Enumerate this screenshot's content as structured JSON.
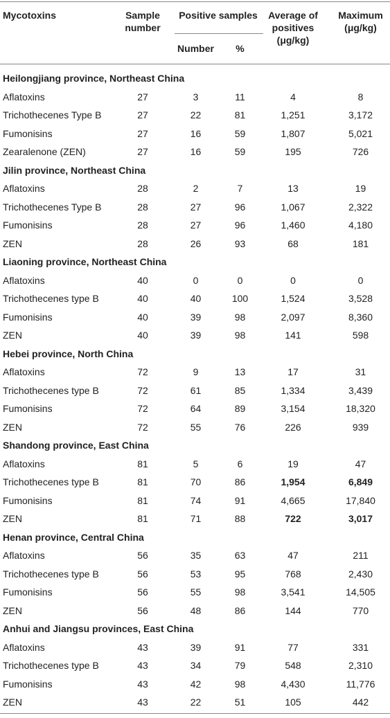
{
  "header": {
    "mycotoxins": "Mycotoxins",
    "sample_number": "Sample number",
    "positive_samples": "Positive samples",
    "number": "Number",
    "percent": "%",
    "average": "Average of positives (μg/kg)",
    "maximum": "Maximum (μg/kg)"
  },
  "sections": [
    {
      "title": "Heilongjiang province, Northeast China",
      "rows": [
        [
          "Aflatoxins",
          "27",
          "3",
          "11",
          "4",
          "8"
        ],
        [
          "Trichothecenes Type B",
          "27",
          "22",
          "81",
          "1,251",
          "3,172"
        ],
        [
          "Fumonisins",
          "27",
          "16",
          "59",
          "1,807",
          "5,021"
        ],
        [
          "Zearalenone (ZEN)",
          "27",
          "16",
          "59",
          "195",
          "726"
        ]
      ]
    },
    {
      "title": "Jilin province, Northeast China",
      "rows": [
        [
          "Aflatoxins",
          "28",
          "2",
          "7",
          "13",
          "19"
        ],
        [
          "Trichothecenes Type B",
          "28",
          "27",
          "96",
          "1,067",
          "2,322"
        ],
        [
          "Fumonisins",
          "28",
          "27",
          "96",
          "1,460",
          "4,180"
        ],
        [
          "ZEN",
          "28",
          "26",
          "93",
          "68",
          "181"
        ]
      ]
    },
    {
      "title": "Liaoning province, Northeast China",
      "rows": [
        [
          "Aflatoxins",
          "40",
          "0",
          "0",
          "0",
          "0"
        ],
        [
          "Trichothecenes type B",
          "40",
          "40",
          "100",
          "1,524",
          "3,528"
        ],
        [
          "Fumonisins",
          "40",
          "39",
          "98",
          "2,097",
          "8,360"
        ],
        [
          "ZEN",
          "40",
          "39",
          "98",
          "141",
          "598"
        ]
      ]
    },
    {
      "title": "Hebei province, North China",
      "rows": [
        [
          "Aflatoxins",
          "72",
          "9",
          "13",
          "17",
          "31"
        ],
        [
          "Trichothecenes type B",
          "72",
          "61",
          "85",
          "1,334",
          "3,439"
        ],
        [
          "Fumonisins",
          "72",
          "64",
          "89",
          "3,154",
          "18,320"
        ],
        [
          "ZEN",
          "72",
          "55",
          "76",
          "226",
          "939"
        ]
      ]
    },
    {
      "title": "Shandong province, East China",
      "rows": [
        [
          "Aflatoxins",
          "81",
          "5",
          "6",
          "19",
          "47"
        ],
        [
          "Trichothecenes type B",
          "81",
          "70",
          "86",
          "1,954",
          "6,849"
        ],
        [
          "Fumonisins",
          "81",
          "74",
          "91",
          "4,665",
          "17,840"
        ],
        [
          "ZEN",
          "81",
          "71",
          "88",
          "722",
          "3,017"
        ]
      ],
      "bold_cells": [
        [
          1,
          4
        ],
        [
          1,
          5
        ],
        [
          3,
          4
        ],
        [
          3,
          5
        ]
      ]
    },
    {
      "title": "Henan province, Central China",
      "rows": [
        [
          "Aflatoxins",
          "56",
          "35",
          "63",
          "47",
          "211"
        ],
        [
          "Trichothecenes type B",
          "56",
          "53",
          "95",
          "768",
          "2,430"
        ],
        [
          "Fumonisins",
          "56",
          "55",
          "98",
          "3,541",
          "14,505"
        ],
        [
          "ZEN",
          "56",
          "48",
          "86",
          "144",
          "770"
        ]
      ]
    },
    {
      "title": "Anhui and Jiangsu provinces, East China",
      "rows": [
        [
          "Aflatoxins",
          "43",
          "39",
          "91",
          "77",
          "331"
        ],
        [
          "Trichothecenes type B",
          "43",
          "34",
          "79",
          "548",
          "2,310"
        ],
        [
          "Fumonisins",
          "43",
          "42",
          "98",
          "4,430",
          "11,776"
        ],
        [
          "ZEN",
          "43",
          "22",
          "51",
          "105",
          "442"
        ]
      ]
    }
  ]
}
